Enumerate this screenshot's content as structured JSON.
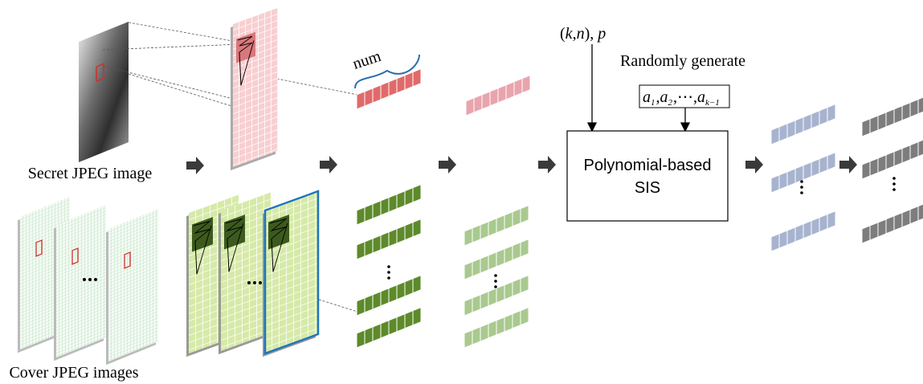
{
  "labels": {
    "secret": "Secret JPEG image",
    "cover": "Cover JPEG images",
    "num": "num",
    "params": [
      "(",
      "k",
      ",",
      "n",
      "), ",
      "p"
    ],
    "random": "Randomly generate",
    "coefficients": [
      {
        "symbol": "a",
        "subscript": "1"
      },
      {
        "symbol": ","
      },
      {
        "symbol": "a",
        "subscript": "2"
      },
      {
        "symbol": ","
      },
      {
        "symbol": "⋯"
      },
      {
        "symbol": ","
      },
      {
        "symbol": "a",
        "subscript": "k−1"
      }
    ],
    "sis_line1": "Polynomial-based",
    "sis_line2": "SIS"
  }
}
